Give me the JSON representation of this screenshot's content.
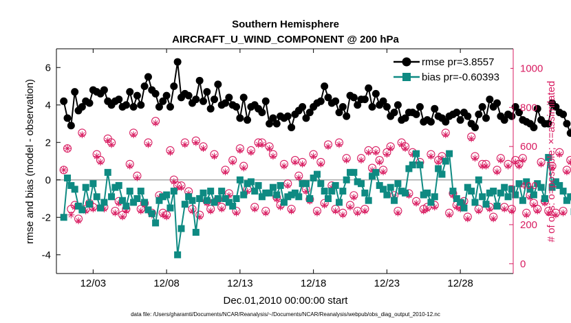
{
  "chart_data": {
    "type": "line",
    "title": "Southern Hemisphere",
    "subtitle": "AIRCRAFT_U_WIND_COMPONENT @ 200 hPa",
    "xlabel": "Dec.01,2010 00:00:00 start",
    "ylabel_left": "rmse and bias (model - observation)",
    "ylabel_right": "# of obs: o=possible; ×=assimilated",
    "footnote": "data file: /Users/gharamti/Documents/NCAR/Reanalysis/~/Documents/NCAR/Reanalysis/webpub/obs_diag_output_2010-12.nc",
    "xlim": [
      0.5,
      31.6
    ],
    "ylim_left": [
      -5,
      7
    ],
    "ylim_right": [
      -50,
      1100
    ],
    "x_ticks": [
      3,
      8,
      13,
      18,
      23,
      28
    ],
    "x_tick_labels": [
      "12/03",
      "12/08",
      "12/13",
      "12/18",
      "12/23",
      "12/28"
    ],
    "y_ticks_left": [
      -4,
      -2,
      0,
      2,
      4,
      6
    ],
    "y_ticks_right": [
      0,
      200,
      400,
      600,
      800,
      1000
    ],
    "x_start": 1.0,
    "x_step": 0.25,
    "series": [
      {
        "name": "rmse",
        "legend": "rmse pr=3.8557",
        "color": "#000000",
        "marker": "circle",
        "axis": "left",
        "values": [
          4.2,
          3.3,
          2.9,
          4.7,
          3.7,
          3.9,
          4.2,
          4.1,
          4.8,
          4.7,
          4.6,
          4.8,
          4.2,
          4.0,
          4.2,
          4.3,
          3.9,
          4.0,
          4.7,
          3.9,
          4.5,
          4.0,
          5.0,
          5.5,
          4.8,
          4.6,
          3.9,
          4.2,
          4.5,
          3.9,
          5.0,
          6.3,
          4.4,
          4.6,
          4.5,
          4.1,
          4.3,
          5.3,
          4.2,
          4.7,
          3.8,
          4.3,
          5.1,
          4.0,
          4.1,
          4.4,
          4.0,
          3.9,
          3.3,
          4.4,
          3.2,
          3.9,
          4.0,
          3.8,
          3.6,
          4.2,
          3.0,
          3.3,
          3.0,
          3.4,
          3.3,
          3.4,
          2.8,
          3.5,
          3.7,
          3.9,
          3.3,
          3.6,
          3.9,
          4.1,
          4.2,
          5.0,
          4.4,
          4.1,
          4.2,
          3.6,
          3.9,
          3.4,
          4.5,
          4.4,
          4.0,
          4.3,
          4.3,
          4.9,
          3.9,
          4.6,
          4.0,
          4.2,
          3.9,
          3.4,
          3.6,
          4.0,
          3.2,
          3.3,
          3.6,
          3.6,
          3.5,
          3.9,
          3.1,
          3.2,
          3.1,
          3.8,
          3.4,
          3.3,
          3.1,
          3.4,
          3.5,
          3.6,
          3.2,
          3.6,
          3.4,
          3.0,
          2.8,
          3.5,
          3.9,
          3.3,
          4.3,
          3.9,
          4.1,
          3.4,
          3.2,
          3.5,
          3.4,
          3.9,
          3.6,
          3.2,
          3.1,
          3.0,
          2.8,
          3.8,
          3.2,
          3.0,
          3.0,
          4.1,
          3.9,
          3.6,
          3.5,
          3.0,
          2.5,
          2.7,
          2.8,
          3.2
        ]
      },
      {
        "name": "bias",
        "legend": "bias pr=-0.60393",
        "color": "#0e8a82",
        "marker": "square",
        "axis": "left",
        "values": [
          -2.0,
          0.1,
          -0.3,
          -0.5,
          -1.4,
          -1.6,
          -0.4,
          -1.3,
          -0.2,
          -0.9,
          -1.5,
          -1.2,
          0.4,
          -0.9,
          -0.4,
          -0.3,
          -1.1,
          -1.4,
          -0.6,
          -1.2,
          -1.0,
          -0.6,
          -1.2,
          -1.6,
          -1.8,
          -2.3,
          -1.1,
          -0.9,
          -0.8,
          -1.5,
          -0.6,
          -4.0,
          -2.6,
          -1.3,
          -0.9,
          -1.1,
          -2.8,
          -1.0,
          -0.7,
          -1.1,
          -0.6,
          -1.2,
          -1.0,
          -0.6,
          -1.0,
          -1.2,
          -1.4,
          -1.0,
          0.0,
          -0.8,
          -0.2,
          -0.1,
          -0.6,
          -0.3,
          -0.9,
          -0.7,
          -0.7,
          -0.4,
          -0.8,
          -0.3,
          -1.2,
          -0.9,
          -0.8,
          -0.7,
          -0.9,
          -0.2,
          -0.2,
          -1.0,
          0.1,
          0.3,
          -0.2,
          -0.6,
          -1.0,
          -0.6,
          -0.3,
          -1.2,
          -0.6,
          0.0,
          0.4,
          0.4,
          -0.1,
          -0.2,
          -0.7,
          -1.1,
          0.2,
          0.4,
          -0.3,
          -0.5,
          -0.8,
          -0.4,
          -1.1,
          -0.2,
          -0.6,
          -0.7,
          0.6,
          0.8,
          1.4,
          0.8,
          -0.8,
          -0.7,
          -1.2,
          -0.9,
          0.6,
          0.3,
          1.0,
          1.4,
          -0.6,
          -1.0,
          -1.2,
          -1.5,
          -0.4,
          -0.6,
          -1.2,
          0.0,
          -0.9,
          -1.3,
          -0.7,
          -0.6,
          -1.4,
          -0.7,
          -0.4,
          -0.9,
          -0.5,
          -0.8,
          -0.2,
          -1.1,
          -0.1,
          -0.5,
          -0.8,
          -0.2,
          -0.4,
          -1.0,
          1.2,
          -0.4,
          -0.1,
          -0.3,
          -0.6,
          -1.1,
          -0.9,
          -1.7
        ]
      },
      {
        "name": "obs_possible",
        "color": "#d81b60",
        "marker": "open-circle",
        "axis": "right",
        "values": [
          480,
          590,
          280,
          300,
          230,
          670,
          280,
          310,
          290,
          560,
          530,
          290,
          640,
          620,
          270,
          320,
          250,
          280,
          510,
          670,
          450,
          280,
          310,
          620,
          260,
          730,
          350,
          260,
          250,
          580,
          430,
          400,
          400,
          620,
          370,
          280,
          630,
          250,
          600,
          320,
          280,
          560,
          330,
          290,
          480,
          360,
          530,
          270,
          590,
          500,
          380,
          580,
          290,
          620,
          620,
          270,
          600,
          560,
          340,
          300,
          510,
          410,
          280,
          530,
          450,
          520,
          380,
          330,
          560,
          270,
          520,
          310,
          610,
          400,
          280,
          620,
          260,
          540,
          300,
          350,
          270,
          540,
          280,
          580,
          490,
          580,
          530,
          480,
          570,
          600,
          350,
          270,
          620,
          600,
          360,
          570,
          320,
          520,
          280,
          290,
          560,
          300,
          530,
          550,
          670,
          260,
          360,
          300,
          290,
          320,
          240,
          650,
          550,
          280,
          510,
          510,
          290,
          240,
          480,
          540,
          290,
          510,
          280,
          530,
          510,
          540,
          260,
          350,
          310,
          280,
          520,
          320,
          270,
          500,
          260,
          570,
          270,
          480,
          530,
          350,
          260,
          0
        ]
      },
      {
        "name": "obs_assimilated",
        "color": "#d81b60",
        "marker": "asterisk",
        "axis": "right",
        "values": [
          480,
          590,
          250,
          290,
          220,
          660,
          270,
          300,
          280,
          550,
          520,
          280,
          630,
          610,
          260,
          310,
          240,
          270,
          500,
          660,
          440,
          270,
          300,
          610,
          250,
          720,
          340,
          250,
          240,
          570,
          420,
          390,
          390,
          610,
          360,
          270,
          620,
          240,
          590,
          310,
          270,
          550,
          320,
          280,
          470,
          350,
          520,
          260,
          580,
          490,
          370,
          570,
          280,
          610,
          610,
          260,
          590,
          550,
          330,
          290,
          500,
          400,
          270,
          520,
          440,
          510,
          370,
          320,
          550,
          260,
          510,
          300,
          600,
          390,
          270,
          610,
          250,
          530,
          290,
          340,
          260,
          530,
          270,
          570,
          480,
          570,
          520,
          470,
          560,
          590,
          340,
          260,
          610,
          590,
          350,
          560,
          310,
          510,
          270,
          280,
          550,
          290,
          520,
          540,
          660,
          250,
          350,
          290,
          280,
          310,
          230,
          640,
          540,
          270,
          500,
          500,
          280,
          230,
          470,
          530,
          280,
          500,
          270,
          520,
          500,
          530,
          250,
          340,
          300,
          270,
          510,
          310,
          260,
          490,
          250,
          560,
          260,
          470,
          520,
          340,
          250,
          0
        ]
      }
    ]
  }
}
